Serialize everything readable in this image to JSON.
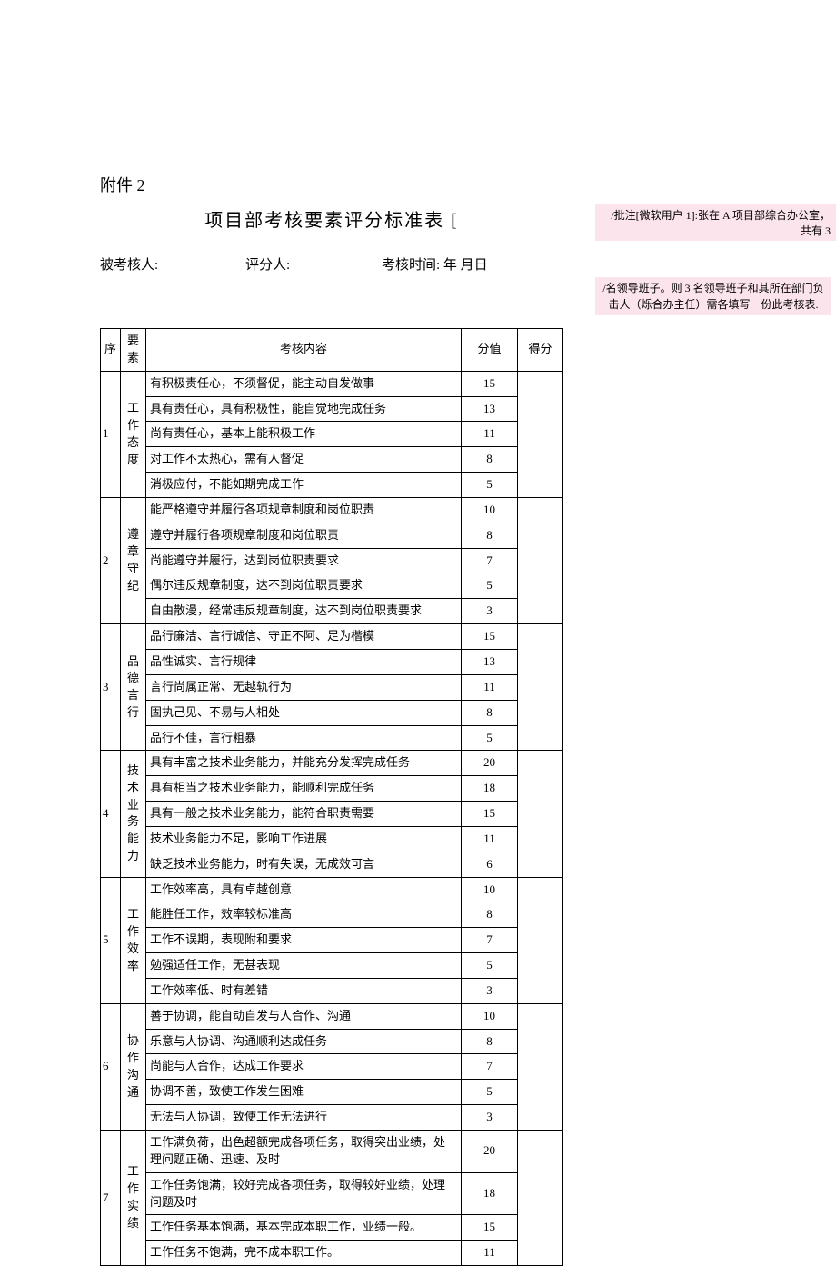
{
  "attachment_label": "附件 2",
  "title": "项目部考核要素评分标准表 [",
  "meta": {
    "person_label": "被考核人:",
    "scorer_label": "评分人:",
    "time_label": "考核时间: 年 月日"
  },
  "headers": {
    "seq": "序",
    "cat": "要素",
    "content": "考核内容",
    "val": "分值",
    "score": "得分"
  },
  "comments": {
    "c1": "/批注[微软用户 1]:张在 A 项目部综合办公室，共有 3",
    "c2": "/名领导班子。则 3 名领导班子和其所在部门负击人（烁合办主任）需各填写一份此考核表."
  },
  "groups": [
    {
      "seq": "1",
      "cat": "工作态度",
      "rows": [
        {
          "content": "有积极责任心，不须督促，能主动自发做事",
          "val": "15"
        },
        {
          "content": "具有责任心，具有积极性，能自觉地完成任务",
          "val": "13"
        },
        {
          "content": "尚有责任心，基本上能积极工作",
          "val": "11"
        },
        {
          "content": "对工作不太热心，需有人督促",
          "val": "8"
        },
        {
          "content": "消极应付，不能如期完成工作",
          "val": "5"
        }
      ]
    },
    {
      "seq": "2",
      "cat": "遵章守纪",
      "rows": [
        {
          "content": "能严格遵守并履行各项规章制度和岗位职责",
          "val": "10"
        },
        {
          "content": "遵守并履行各项规章制度和岗位职责",
          "val": "8"
        },
        {
          "content": "尚能遵守并履行，达到岗位职责要求",
          "val": "7"
        },
        {
          "content": "偶尔违反规章制度，达不到岗位职责要求",
          "val": "5"
        },
        {
          "content": "自由散漫，经常违反规章制度，达不到岗位职责要求",
          "val": "3"
        }
      ]
    },
    {
      "seq": "3",
      "cat": "品德言行",
      "rows": [
        {
          "content": "品行廉洁、言行诚信、守正不阿、足为楷模",
          "val": "15"
        },
        {
          "content": "品性诚实、言行规律",
          "val": "13"
        },
        {
          "content": "言行尚属正常、无越轨行为",
          "val": "11"
        },
        {
          "content": "固执己见、不易与人相处",
          "val": "8"
        },
        {
          "content": "品行不佳，言行粗暴",
          "val": "5"
        }
      ]
    },
    {
      "seq": "4",
      "cat": "技术业务能力",
      "rows": [
        {
          "content": "具有丰富之技术业务能力，并能充分发挥完成任务",
          "val": "20"
        },
        {
          "content": "具有相当之技术业务能力，能顺利完成任务",
          "val": "18"
        },
        {
          "content": "具有一般之技术业务能力，能符合职责需要",
          "val": "15"
        },
        {
          "content": "技术业务能力不足，影响工作进展",
          "val": "11"
        },
        {
          "content": "缺乏技术业务能力，时有失误，无成效可言",
          "val": "6"
        }
      ]
    },
    {
      "seq": "5",
      "cat": "工作效率",
      "rows": [
        {
          "content": "工作效率高，具有卓越创意",
          "val": "10"
        },
        {
          "content": "能胜任工作，效率较标准高",
          "val": "8"
        },
        {
          "content": "工作不误期，表现附和要求",
          "val": "7"
        },
        {
          "content": "勉强适任工作，无甚表现",
          "val": "5"
        },
        {
          "content": "工作效率低、时有差错",
          "val": "3"
        }
      ]
    },
    {
      "seq": "6",
      "cat": "协作沟通",
      "rows": [
        {
          "content": "善于协调，能自动自发与人合作、沟通",
          "val": "10"
        },
        {
          "content": "乐意与人协调、沟通顺利达成任务",
          "val": "8"
        },
        {
          "content": "尚能与人合作，达成工作要求",
          "val": "7"
        },
        {
          "content": "协调不善，致使工作发生困难",
          "val": "5"
        },
        {
          "content": "无法与人协调，致使工作无法进行",
          "val": "3"
        }
      ]
    },
    {
      "seq": "7",
      "cat": "工作实绩",
      "rows": [
        {
          "content": "工作满负荷，出色超额完成各项任务，取得突出业绩，处理问题正确、迅速、及时",
          "val": "20"
        },
        {
          "content": "工作任务饱满，较好完成各项任务，取得较好业绩，处理问题及时",
          "val": "18"
        },
        {
          "content": "工作任务基本饱满，基本完成本职工作，业绩一般。",
          "val": "15"
        },
        {
          "content": "工作任务不饱满，完不成本职工作。",
          "val": "11"
        }
      ]
    }
  ],
  "style": {
    "comment_bg": "#fce4ec",
    "border_color": "#000000",
    "dashed_color": "#888888"
  }
}
